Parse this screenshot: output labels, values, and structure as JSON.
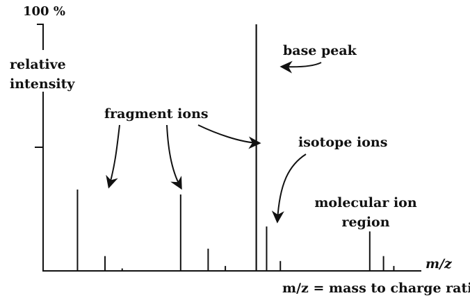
{
  "chart_data": {
    "type": "bar",
    "y_top_label": "100 %",
    "ylabel": "relative intensity",
    "xlabel": "m/z",
    "caption": "m/z = mass to charge ratio",
    "ylim": [
      0,
      100
    ],
    "y_ticks": [
      50,
      100
    ],
    "peaks": [
      {
        "group": "fragment-1",
        "x": 1,
        "y": 33
      },
      {
        "group": "fragment-1",
        "x": 1.8,
        "y": 6
      },
      {
        "group": "fragment-1",
        "x": 2.3,
        "y": 1
      },
      {
        "group": "fragment-2",
        "x": 4,
        "y": 31
      },
      {
        "group": "fragment-2",
        "x": 4.8,
        "y": 9
      },
      {
        "group": "fragment-2",
        "x": 5.3,
        "y": 2
      },
      {
        "group": "base",
        "x": 6.2,
        "y": 100
      },
      {
        "group": "isotope",
        "x": 6.5,
        "y": 18
      },
      {
        "group": "isotope",
        "x": 6.9,
        "y": 4
      },
      {
        "group": "molecular",
        "x": 9.5,
        "y": 16
      },
      {
        "group": "molecular",
        "x": 9.9,
        "y": 6
      },
      {
        "group": "molecular",
        "x": 10.2,
        "y": 2
      }
    ],
    "annotations": {
      "fragment": "fragment ions",
      "base": "base peak",
      "isotope": "isotope ions",
      "molecular_line1": "molecular ion",
      "molecular_line2": "region"
    }
  }
}
